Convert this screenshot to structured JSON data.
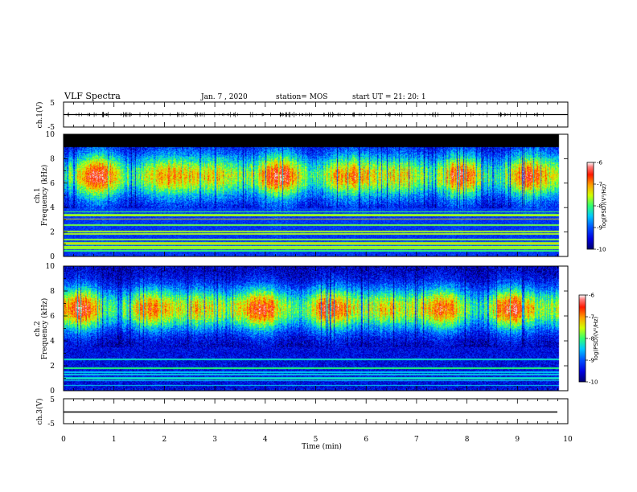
{
  "header": {
    "title": "VLF Spectra",
    "date": "Jan. 7 , 2020",
    "station": "station= MOS",
    "start": "start UT = 21: 20: 1"
  },
  "colors": {
    "colormap": [
      "#000070",
      "#0000d8",
      "#0060ff",
      "#00d8ff",
      "#20ff80",
      "#c8ff00",
      "#ffb000",
      "#ff2000",
      "#e8e8f0"
    ],
    "trace": "#000000",
    "band_black": "#000000"
  },
  "chart_data": [
    {
      "type": "line",
      "name": "ch1-waveform",
      "ylabel": "ch.1(V)",
      "ylim": [
        -5,
        5
      ],
      "yticks": [
        "5",
        "-5"
      ],
      "xlim": [
        0,
        10
      ],
      "trace_level": 0
    },
    {
      "type": "heatmap",
      "name": "ch1-spectrogram",
      "ylabel_top": "ch.1",
      "ylabel": "Frequency (kHz)",
      "ylim": [
        0,
        10
      ],
      "yticks": [
        "0",
        "2",
        "4",
        "6",
        "8",
        "10"
      ],
      "xlim": [
        0,
        10
      ],
      "x_end": 9.82,
      "black_band_above_khz": 9.0,
      "colorbar": {
        "label": "log(PSD)(V²/Hz)",
        "range": [
          -10,
          -6
        ],
        "ticks": [
          "-6",
          "-7",
          "-8",
          "-9",
          "-10"
        ]
      }
    },
    {
      "type": "heatmap",
      "name": "ch2-spectrogram",
      "ylabel_top": "ch.2",
      "ylabel": "Frequency (kHz)",
      "ylim": [
        0,
        10
      ],
      "yticks": [
        "0",
        "2",
        "4",
        "6",
        "8",
        "10"
      ],
      "xlim": [
        0,
        10
      ],
      "x_end": 9.82,
      "colorbar": {
        "label": "log(PSD)(V²/Hz)",
        "range": [
          -10,
          -6
        ],
        "ticks": [
          "-6",
          "-7",
          "-8",
          "-9",
          "-10"
        ]
      }
    },
    {
      "type": "line",
      "name": "ch3-waveform",
      "ylabel": "ch.3(V)",
      "ylim": [
        -5,
        5
      ],
      "yticks": [
        "5",
        "-5"
      ],
      "xlim": [
        0,
        10
      ],
      "trace_level": 0,
      "xlabel": "Time (min)",
      "xticks": [
        "0",
        "1",
        "2",
        "3",
        "4",
        "5",
        "6",
        "7",
        "8",
        "9",
        "10"
      ]
    }
  ]
}
